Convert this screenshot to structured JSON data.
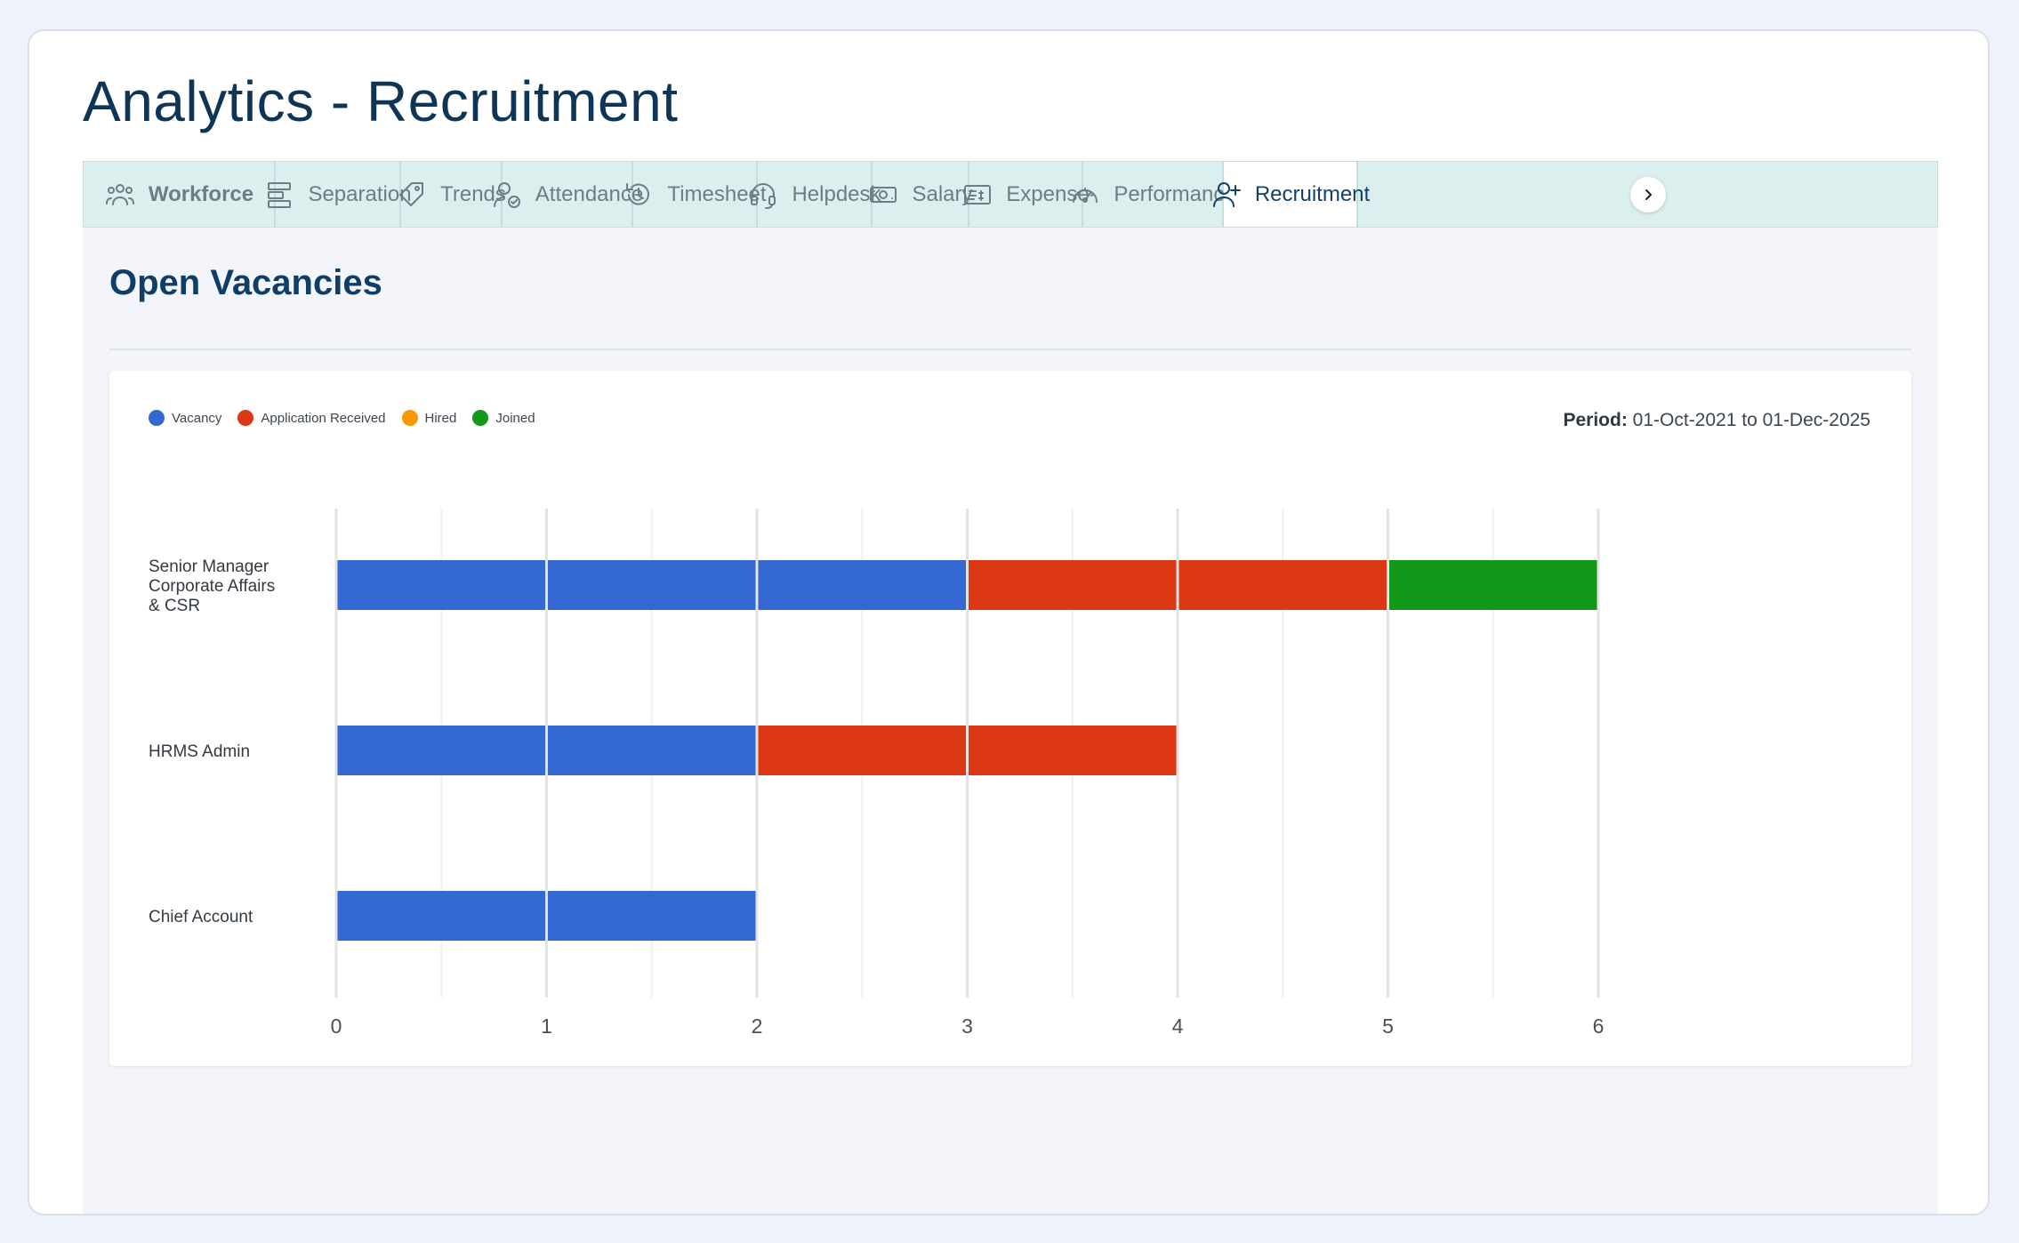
{
  "page": {
    "title": "Analytics - Recruitment"
  },
  "tabs": [
    {
      "label": "Workforce",
      "icon": "users-icon",
      "bold": true,
      "active": false
    },
    {
      "label": "Separation",
      "icon": "layout-rows-icon",
      "bold": false,
      "active": false
    },
    {
      "label": "Trends",
      "icon": "tag-icon",
      "bold": false,
      "active": false
    },
    {
      "label": "Attendance",
      "icon": "user-check-icon",
      "bold": false,
      "active": false
    },
    {
      "label": "Timesheet",
      "icon": "history-icon",
      "bold": false,
      "active": false
    },
    {
      "label": "Helpdesk",
      "icon": "headset-icon",
      "bold": false,
      "active": false
    },
    {
      "label": "Salary",
      "icon": "banknote-icon",
      "bold": false,
      "active": false
    },
    {
      "label": "Expense",
      "icon": "receipt-icon",
      "bold": false,
      "active": false
    },
    {
      "label": "Performance",
      "icon": "gauge-icon",
      "bold": false,
      "active": false
    },
    {
      "label": "Recruitment",
      "icon": "user-plus-icon",
      "bold": false,
      "active": true
    }
  ],
  "section": {
    "title": "Open Vacancies"
  },
  "period": {
    "label": "Period:",
    "value": "01-Oct-2021 to 01-Dec-2025"
  },
  "colors": {
    "vacancy": "#3367d1",
    "application_received": "#dd3814",
    "hired": "#fb9800",
    "joined": "#139719",
    "active_tab_text": "#12416b",
    "title": "#0f3556"
  },
  "chart_data": {
    "type": "bar",
    "orientation": "horizontal",
    "stacked": true,
    "categories": [
      "Senior Manager Corporate Affairs & CSR",
      "HRMS Admin",
      "Chief Account"
    ],
    "series": [
      {
        "name": "Vacancy",
        "color": "#3367d1",
        "values": [
          3,
          2,
          2
        ]
      },
      {
        "name": "Application Received",
        "color": "#dd3814",
        "values": [
          2,
          2,
          0
        ]
      },
      {
        "name": "Hired",
        "color": "#fb9800",
        "values": [
          0,
          0,
          0
        ]
      },
      {
        "name": "Joined",
        "color": "#139719",
        "values": [
          1,
          0,
          0
        ]
      }
    ],
    "x_ticks": [
      0,
      1,
      2,
      3,
      4,
      5,
      6
    ],
    "xlim": [
      0,
      6
    ],
    "grid": true,
    "legend_position": "top-left"
  }
}
